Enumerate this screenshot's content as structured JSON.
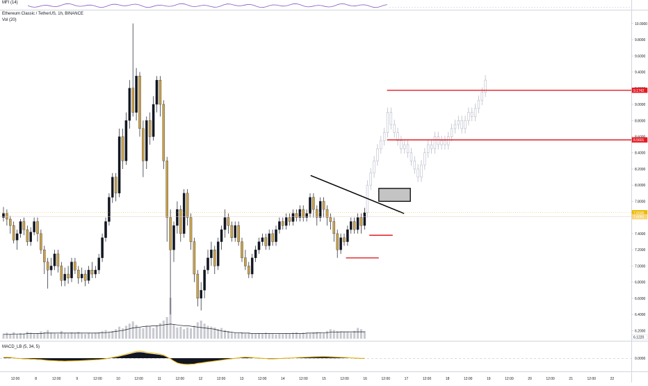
{
  "top_indicator": {
    "label": "MFI (14)"
  },
  "symbol": {
    "name": "Ethereum Classic / TetherUS",
    "interval": "1h",
    "exchange": "BINANCE",
    "title_sep1": ", ",
    "title_sep2": ", ",
    "volume_label": "Vol (20)"
  },
  "macd": {
    "label": "MACD_LB (5, 34, 5)"
  },
  "colors": {
    "candle_up": "#131722",
    "candle_down": "#c8a14e",
    "projection": "#b8bcc8",
    "level_line": "#e31b23",
    "trendline": "#000000",
    "volume": "#c7c9cf",
    "volume_ma": "#131722",
    "macd_line": "#f0b90b",
    "macd_hist": "#131722",
    "grid": "#e6e8ec"
  },
  "chart_data": {
    "type": "candlestick",
    "price_axis": {
      "ylim": [
        6.1,
        10.05
      ],
      "ticks": [
        "10.0000",
        "9.8000",
        "9.6000",
        "9.4000",
        "9.2000",
        "9.0000",
        "8.8000",
        "8.6000",
        "8.4000",
        "8.2000",
        "8.0000",
        "7.8000",
        "7.6000",
        "7.4000",
        "7.2000",
        "7.0000",
        "6.8000",
        "6.6000",
        "6.4000",
        "6.2000"
      ]
    },
    "price_labels": [
      {
        "text": "9.1742",
        "value": 9.1742,
        "color": "#e31b23"
      },
      {
        "text": "8.5601",
        "value": 8.5601,
        "color": "#e31b23"
      },
      {
        "text": "7.6596",
        "value": 7.6596,
        "color": "#f0b90b"
      },
      {
        "text": "7.6091",
        "value": 7.6091,
        "color": "#f7d77a"
      },
      {
        "text": "6.1220",
        "value": 6.122,
        "color": "#ffffff"
      }
    ],
    "time_labels": [
      "12:00",
      "8",
      "12:00",
      "9",
      "12:00",
      "10",
      "12:00",
      "11",
      "12:00",
      "12",
      "12:00",
      "13",
      "12:00",
      "14",
      "12:00",
      "15",
      "12:00",
      "16",
      "12:00",
      "17",
      "12:00",
      "18",
      "12:00",
      "19",
      "12:00",
      "20",
      "12:00",
      "21",
      "12:00",
      "22"
    ],
    "macd_axis": {
      "ticks": [
        "0.0000"
      ]
    },
    "candles": [
      {
        "o": 7.6,
        "c": 7.65,
        "h": 7.73,
        "l": 7.55
      },
      {
        "o": 7.65,
        "c": 7.58,
        "h": 7.7,
        "l": 7.5
      },
      {
        "o": 7.58,
        "c": 7.5,
        "h": 7.62,
        "l": 7.4
      },
      {
        "o": 7.5,
        "c": 7.32,
        "h": 7.55,
        "l": 7.28
      },
      {
        "o": 7.32,
        "c": 7.4,
        "h": 7.45,
        "l": 7.2
      },
      {
        "o": 7.4,
        "c": 7.55,
        "h": 7.58,
        "l": 7.35
      },
      {
        "o": 7.55,
        "c": 7.45,
        "h": 7.6,
        "l": 7.38
      },
      {
        "o": 7.45,
        "c": 7.3,
        "h": 7.5,
        "l": 7.25
      },
      {
        "o": 7.3,
        "c": 7.42,
        "h": 7.48,
        "l": 7.25
      },
      {
        "o": 7.42,
        "c": 7.55,
        "h": 7.6,
        "l": 7.38
      },
      {
        "o": 7.55,
        "c": 7.4,
        "h": 7.6,
        "l": 7.3
      },
      {
        "o": 7.4,
        "c": 7.2,
        "h": 7.45,
        "l": 7.15
      },
      {
        "o": 7.2,
        "c": 7.05,
        "h": 7.25,
        "l": 6.9
      },
      {
        "o": 7.05,
        "c": 6.95,
        "h": 7.1,
        "l": 6.72
      },
      {
        "o": 6.95,
        "c": 7.0,
        "h": 7.1,
        "l": 6.88
      },
      {
        "o": 7.0,
        "c": 7.15,
        "h": 7.2,
        "l": 6.95
      },
      {
        "o": 7.15,
        "c": 7.0,
        "h": 7.2,
        "l": 6.92
      },
      {
        "o": 7.0,
        "c": 6.82,
        "h": 7.05,
        "l": 6.75
      },
      {
        "o": 6.82,
        "c": 6.9,
        "h": 6.98,
        "l": 6.75
      },
      {
        "o": 6.9,
        "c": 6.85,
        "h": 7.0,
        "l": 6.78
      },
      {
        "o": 6.85,
        "c": 7.05,
        "h": 7.1,
        "l": 6.8
      },
      {
        "o": 7.05,
        "c": 6.95,
        "h": 7.1,
        "l": 6.9
      },
      {
        "o": 6.95,
        "c": 6.85,
        "h": 7.0,
        "l": 6.78
      },
      {
        "o": 6.85,
        "c": 6.9,
        "h": 6.98,
        "l": 6.8
      },
      {
        "o": 6.9,
        "c": 6.82,
        "h": 6.95,
        "l": 6.75
      },
      {
        "o": 6.82,
        "c": 6.95,
        "h": 7.0,
        "l": 6.78
      },
      {
        "o": 6.95,
        "c": 6.9,
        "h": 7.05,
        "l": 6.85
      },
      {
        "o": 6.9,
        "c": 6.95,
        "h": 7.0,
        "l": 6.85
      },
      {
        "o": 6.95,
        "c": 7.1,
        "h": 7.15,
        "l": 6.9
      },
      {
        "o": 7.1,
        "c": 7.35,
        "h": 7.4,
        "l": 7.05
      },
      {
        "o": 7.35,
        "c": 7.55,
        "h": 7.6,
        "l": 7.3
      },
      {
        "o": 7.55,
        "c": 7.85,
        "h": 7.9,
        "l": 7.5
      },
      {
        "o": 7.85,
        "c": 8.1,
        "h": 8.15,
        "l": 7.78
      },
      {
        "o": 8.1,
        "c": 7.9,
        "h": 8.15,
        "l": 7.8
      },
      {
        "o": 7.9,
        "c": 8.6,
        "h": 8.7,
        "l": 7.85
      },
      {
        "o": 8.6,
        "c": 8.3,
        "h": 8.7,
        "l": 8.2
      },
      {
        "o": 8.3,
        "c": 8.8,
        "h": 8.9,
        "l": 8.25
      },
      {
        "o": 8.8,
        "c": 9.2,
        "h": 9.3,
        "l": 8.7
      },
      {
        "o": 9.2,
        "c": 8.9,
        "h": 10.0,
        "l": 8.85
      },
      {
        "o": 8.9,
        "c": 9.35,
        "h": 9.45,
        "l": 8.8
      },
      {
        "o": 9.35,
        "c": 8.7,
        "h": 9.4,
        "l": 8.6
      },
      {
        "o": 8.7,
        "c": 8.3,
        "h": 8.8,
        "l": 8.1
      },
      {
        "o": 8.3,
        "c": 8.8,
        "h": 8.85,
        "l": 8.2
      },
      {
        "o": 8.8,
        "c": 8.6,
        "h": 8.9,
        "l": 8.5
      },
      {
        "o": 8.6,
        "c": 9.0,
        "h": 9.1,
        "l": 8.55
      },
      {
        "o": 9.0,
        "c": 9.3,
        "h": 9.35,
        "l": 8.9
      },
      {
        "o": 9.3,
        "c": 9.0,
        "h": 9.35,
        "l": 8.85
      },
      {
        "o": 9.0,
        "c": 8.3,
        "h": 9.05,
        "l": 8.2
      },
      {
        "o": 8.3,
        "c": 7.6,
        "h": 8.35,
        "l": 7.3
      },
      {
        "o": 7.6,
        "c": 7.2,
        "h": 7.7,
        "l": 6.4
      },
      {
        "o": 7.2,
        "c": 7.5,
        "h": 7.55,
        "l": 7.05
      },
      {
        "o": 7.5,
        "c": 7.7,
        "h": 7.8,
        "l": 7.4
      },
      {
        "o": 7.7,
        "c": 7.4,
        "h": 7.75,
        "l": 7.3
      },
      {
        "o": 7.4,
        "c": 7.9,
        "h": 7.95,
        "l": 7.35
      },
      {
        "o": 7.9,
        "c": 7.6,
        "h": 7.95,
        "l": 7.5
      },
      {
        "o": 7.6,
        "c": 7.3,
        "h": 7.65,
        "l": 7.2
      },
      {
        "o": 7.3,
        "c": 6.9,
        "h": 7.35,
        "l": 6.8
      },
      {
        "o": 6.9,
        "c": 6.6,
        "h": 6.95,
        "l": 6.5
      },
      {
        "o": 6.6,
        "c": 6.7,
        "h": 6.8,
        "l": 6.45
      },
      {
        "o": 6.7,
        "c": 6.95,
        "h": 7.0,
        "l": 6.6
      },
      {
        "o": 6.95,
        "c": 7.1,
        "h": 7.2,
        "l": 6.9
      },
      {
        "o": 7.1,
        "c": 7.2,
        "h": 7.3,
        "l": 7.0
      },
      {
        "o": 7.2,
        "c": 7.0,
        "h": 7.25,
        "l": 6.9
      },
      {
        "o": 7.0,
        "c": 7.3,
        "h": 7.35,
        "l": 6.95
      },
      {
        "o": 7.3,
        "c": 7.45,
        "h": 7.5,
        "l": 7.2
      },
      {
        "o": 7.45,
        "c": 7.6,
        "h": 7.7,
        "l": 7.35
      },
      {
        "o": 7.6,
        "c": 7.5,
        "h": 7.65,
        "l": 7.4
      },
      {
        "o": 7.5,
        "c": 7.35,
        "h": 7.55,
        "l": 7.3
      },
      {
        "o": 7.35,
        "c": 7.5,
        "h": 7.55,
        "l": 7.3
      },
      {
        "o": 7.5,
        "c": 7.3,
        "h": 7.55,
        "l": 7.25
      },
      {
        "o": 7.3,
        "c": 7.1,
        "h": 7.35,
        "l": 7.05
      },
      {
        "o": 7.1,
        "c": 7.0,
        "h": 7.2,
        "l": 6.95
      },
      {
        "o": 7.0,
        "c": 6.9,
        "h": 7.05,
        "l": 6.85
      },
      {
        "o": 6.9,
        "c": 7.1,
        "h": 7.15,
        "l": 6.85
      },
      {
        "o": 7.1,
        "c": 7.2,
        "h": 7.25,
        "l": 7.05
      },
      {
        "o": 7.2,
        "c": 7.3,
        "h": 7.35,
        "l": 7.15
      },
      {
        "o": 7.3,
        "c": 7.35,
        "h": 7.4,
        "l": 7.25
      },
      {
        "o": 7.35,
        "c": 7.25,
        "h": 7.4,
        "l": 7.2
      },
      {
        "o": 7.25,
        "c": 7.4,
        "h": 7.45,
        "l": 7.2
      },
      {
        "o": 7.4,
        "c": 7.3,
        "h": 7.45,
        "l": 7.25
      },
      {
        "o": 7.3,
        "c": 7.45,
        "h": 7.5,
        "l": 7.25
      },
      {
        "o": 7.45,
        "c": 7.55,
        "h": 7.6,
        "l": 7.4
      },
      {
        "o": 7.55,
        "c": 7.5,
        "h": 7.6,
        "l": 7.45
      },
      {
        "o": 7.5,
        "c": 7.6,
        "h": 7.65,
        "l": 7.45
      },
      {
        "o": 7.6,
        "c": 7.55,
        "h": 7.65,
        "l": 7.5
      },
      {
        "o": 7.55,
        "c": 7.65,
        "h": 7.7,
        "l": 7.5
      },
      {
        "o": 7.65,
        "c": 7.6,
        "h": 7.7,
        "l": 7.55
      },
      {
        "o": 7.6,
        "c": 7.7,
        "h": 7.75,
        "l": 7.55
      },
      {
        "o": 7.7,
        "c": 7.6,
        "h": 7.75,
        "l": 7.55
      },
      {
        "o": 7.6,
        "c": 7.65,
        "h": 7.7,
        "l": 7.55
      },
      {
        "o": 7.65,
        "c": 7.85,
        "h": 7.9,
        "l": 7.6
      },
      {
        "o": 7.85,
        "c": 7.7,
        "h": 7.9,
        "l": 7.6
      },
      {
        "o": 7.7,
        "c": 7.6,
        "h": 7.75,
        "l": 7.5
      },
      {
        "o": 7.6,
        "c": 7.8,
        "h": 7.85,
        "l": 7.55
      },
      {
        "o": 7.8,
        "c": 7.7,
        "h": 7.85,
        "l": 7.6
      },
      {
        "o": 7.7,
        "c": 7.6,
        "h": 7.75,
        "l": 7.5
      },
      {
        "o": 7.6,
        "c": 7.55,
        "h": 7.65,
        "l": 7.45
      },
      {
        "o": 7.55,
        "c": 7.4,
        "h": 7.6,
        "l": 7.3
      },
      {
        "o": 7.4,
        "c": 7.2,
        "h": 7.45,
        "l": 7.1
      },
      {
        "o": 7.2,
        "c": 7.35,
        "h": 7.4,
        "l": 7.15
      },
      {
        "o": 7.35,
        "c": 7.3,
        "h": 7.4,
        "l": 7.25
      },
      {
        "o": 7.3,
        "c": 7.45,
        "h": 7.5,
        "l": 7.25
      },
      {
        "o": 7.45,
        "c": 7.55,
        "h": 7.6,
        "l": 7.4
      },
      {
        "o": 7.55,
        "c": 7.45,
        "h": 7.6,
        "l": 7.4
      },
      {
        "o": 7.45,
        "c": 7.6,
        "h": 7.65,
        "l": 7.4
      },
      {
        "o": 7.6,
        "c": 7.5,
        "h": 7.65,
        "l": 7.4
      },
      {
        "o": 7.5,
        "c": 7.66,
        "h": 7.72,
        "l": 7.45
      }
    ],
    "projection": [
      8.0,
      8.15,
      8.3,
      8.45,
      8.55,
      8.65,
      8.9,
      8.75,
      8.65,
      8.55,
      8.45,
      8.5,
      8.4,
      8.3,
      8.2,
      8.1,
      8.25,
      8.4,
      8.5,
      8.45,
      8.6,
      8.5,
      8.55,
      8.5,
      8.6,
      8.7,
      8.75,
      8.8,
      8.7,
      8.8,
      8.9,
      8.85,
      8.95,
      9.05,
      9.15,
      9.3
    ],
    "volume": [
      12,
      14,
      11,
      15,
      10,
      13,
      12,
      16,
      14,
      11,
      13,
      17,
      15,
      20,
      14,
      12,
      11,
      18,
      13,
      12,
      15,
      14,
      16,
      12,
      11,
      13,
      12,
      14,
      15,
      18,
      20,
      16,
      18,
      22,
      28,
      24,
      30,
      35,
      40,
      32,
      26,
      24,
      30,
      28,
      25,
      30,
      36,
      42,
      50,
      95,
      32,
      26,
      28,
      22,
      26,
      24,
      30,
      38,
      42,
      35,
      30,
      28,
      26,
      22,
      25,
      20,
      18,
      16,
      14,
      13,
      15,
      12,
      14,
      12,
      11,
      13,
      12,
      14,
      12,
      11,
      10,
      12,
      11,
      13,
      12,
      14,
      15,
      12,
      14,
      13,
      12,
      15,
      16,
      14,
      13,
      18,
      22,
      20,
      18,
      17,
      16,
      15,
      14,
      18,
      25,
      22,
      18,
      16,
      15,
      14,
      16,
      13,
      12
    ],
    "volume_ma": [
      10,
      10,
      10,
      11,
      11,
      11,
      11,
      12,
      12,
      12,
      12,
      12,
      13,
      13,
      13,
      13,
      13,
      13,
      13,
      13,
      13,
      13,
      13,
      13,
      13,
      13,
      13,
      13,
      13,
      14,
      14,
      15,
      16,
      17,
      18,
      19,
      21,
      23,
      25,
      26,
      27,
      28,
      29,
      29,
      30,
      30,
      31,
      32,
      33,
      34,
      33,
      32,
      31,
      30,
      30,
      29,
      28,
      27,
      26,
      25,
      24,
      23,
      22,
      20,
      18,
      17,
      16,
      15,
      14,
      14,
      13,
      13,
      13,
      12,
      12,
      12,
      12,
      12,
      12,
      12,
      12,
      12,
      12,
      12,
      12,
      12,
      12,
      12,
      12,
      13,
      13,
      13,
      13,
      14,
      14,
      14,
      15,
      15,
      15,
      16,
      16,
      16,
      16,
      16,
      16,
      16,
      16,
      15,
      15,
      15,
      15,
      15,
      15
    ],
    "macd_hist": [
      0.05,
      0.06,
      0.04,
      0.0,
      -0.05,
      -0.08,
      -0.1,
      -0.12,
      -0.14,
      -0.16,
      -0.18,
      -0.2,
      -0.24,
      -0.28,
      -0.3,
      -0.32,
      -0.34,
      -0.35,
      -0.36,
      -0.35,
      -0.34,
      -0.33,
      -0.32,
      -0.3,
      -0.28,
      -0.26,
      -0.24,
      -0.22,
      -0.2,
      -0.16,
      -0.1,
      -0.04,
      0.05,
      0.12,
      0.2,
      0.3,
      0.4,
      0.5,
      0.6,
      0.7,
      0.72,
      0.68,
      0.6,
      0.55,
      0.5,
      0.45,
      0.4,
      0.3,
      0.1,
      -0.1,
      -0.35,
      -0.55,
      -0.65,
      -0.7,
      -0.72,
      -0.7,
      -0.68,
      -0.6,
      -0.55,
      -0.5,
      -0.45,
      -0.4,
      -0.35,
      -0.3,
      -0.25,
      -0.2,
      -0.15,
      -0.1,
      -0.05,
      0.0,
      0.05,
      0.08,
      0.06,
      0.03,
      0.0,
      -0.03,
      -0.06,
      -0.08,
      -0.1,
      -0.1,
      -0.09,
      -0.08,
      -0.06,
      -0.04,
      -0.02,
      0.0,
      0.02,
      0.04,
      0.06,
      0.08,
      0.1,
      0.12,
      0.13,
      0.14,
      0.15,
      0.14,
      0.12,
      0.1,
      0.08,
      0.06,
      0.04,
      0.02,
      0.0,
      -0.02,
      -0.04,
      -0.06,
      -0.05,
      -0.04,
      -0.03,
      -0.02,
      -0.01,
      0.0,
      0.01
    ],
    "levels": [
      {
        "value": 9.1742,
        "from": 0.613,
        "to": 1.0
      },
      {
        "value": 8.5601,
        "from": 0.613,
        "to": 1.0
      },
      {
        "value": 7.38,
        "from": 0.585,
        "to": 0.622
      },
      {
        "value": 7.1,
        "from": 0.548,
        "to": 0.6
      }
    ],
    "trendline": [
      {
        "x": 0.492,
        "y": 8.12
      },
      {
        "x": 0.64,
        "y": 7.65
      }
    ],
    "box": {
      "x0": 0.6,
      "x1": 0.65,
      "y0": 7.96,
      "y1": 7.8
    }
  }
}
